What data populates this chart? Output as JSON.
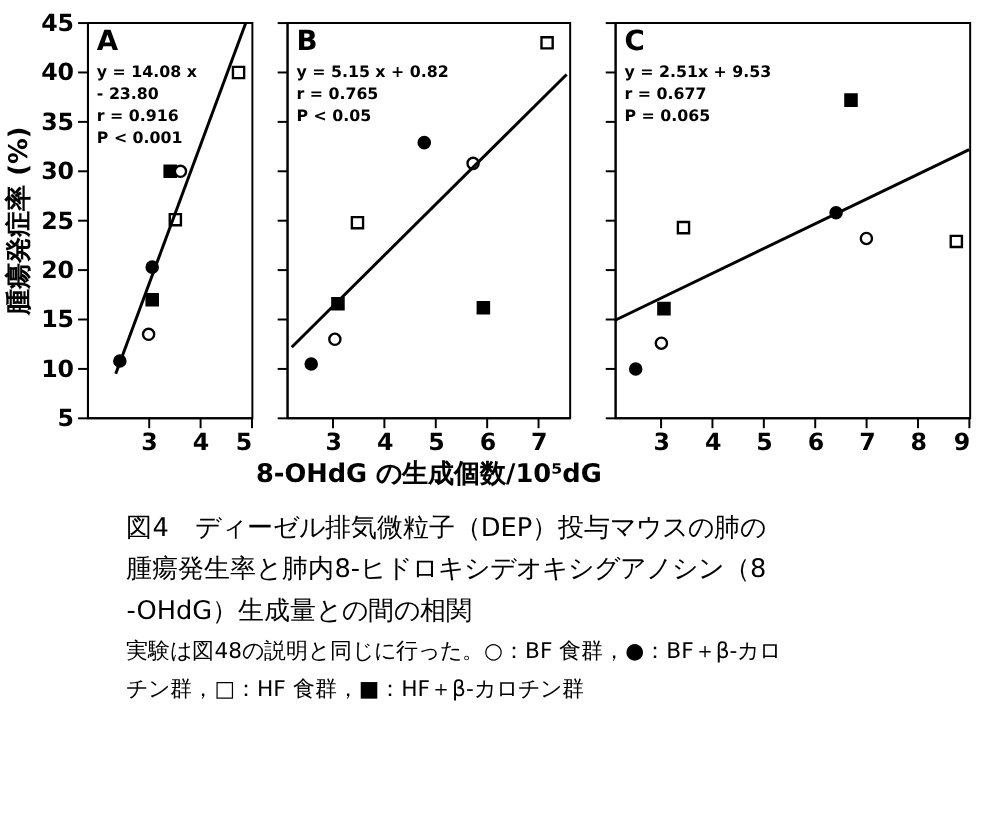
{
  "chart_data": [
    {
      "type": "scatter",
      "title": "A",
      "ylabel": "腫瘍発症率 (%)",
      "annotations": [
        "y = 14.08 x",
        "- 23.80",
        "r = 0.916",
        "P < 0.001"
      ],
      "xlim": [
        1.8,
        5
      ],
      "xticks": [
        3,
        4,
        5
      ],
      "ylim": [
        5,
        45
      ],
      "yticks": [
        5,
        10,
        15,
        20,
        25,
        30,
        35,
        40,
        45
      ],
      "series": [
        {
          "marker": "circle",
          "color": "#000000",
          "x": [
            2.44,
            3.07
          ],
          "values": [
            10.7,
            20.2
          ]
        },
        {
          "marker": "square",
          "color": "#ffffff",
          "x": [
            3.52,
            4.75
          ],
          "values": [
            25.0,
            39.9
          ]
        },
        {
          "marker": "square",
          "color": "#000000",
          "x": [
            3.07,
            3.42
          ],
          "values": [
            16.9,
            29.9
          ]
        },
        {
          "marker": "circle",
          "color": "#ffffff",
          "x": [
            3.0,
            3.62
          ],
          "values": [
            13.4,
            29.9
          ]
        },
        {
          "type": "line",
          "color": "#000000",
          "x": [
            2.36,
            4.89
          ],
          "values": [
            9.4,
            44.9
          ]
        }
      ]
    },
    {
      "type": "scatter",
      "title": "B",
      "xlabel": "8-OHdG の生成個数/10⁵dG",
      "annotations": [
        "y =  5.15 x + 0.82",
        "r = 0.765",
        "P < 0.05"
      ],
      "xlim": [
        2.1,
        7.6
      ],
      "xticks": [
        3,
        4,
        5,
        6,
        7
      ],
      "ylim": [
        5,
        45
      ],
      "yticks": [
        5,
        10,
        15,
        20,
        25,
        30,
        35,
        40,
        45
      ],
      "tick_labels": "x",
      "series": [
        {
          "marker": "circle",
          "color": "#ffffff",
          "x": [
            3.04,
            5.73
          ],
          "values": [
            12.9,
            30.7
          ]
        },
        {
          "marker": "circle",
          "color": "#000000",
          "x": [
            2.58,
            4.78
          ],
          "values": [
            10.4,
            32.8
          ]
        },
        {
          "marker": "square",
          "color": "#ffffff",
          "x": [
            3.48,
            7.17
          ],
          "values": [
            24.7,
            42.9
          ]
        },
        {
          "marker": "square",
          "color": "#000000",
          "x": [
            3.1,
            5.93
          ],
          "values": [
            16.5,
            16.1
          ]
        },
        {
          "type": "line",
          "color": "#000000",
          "x": [
            2.2,
            7.55
          ],
          "values": [
            12.1,
            39.7
          ]
        }
      ]
    },
    {
      "type": "scatter",
      "title": "C",
      "annotations": [
        "y = 2.51x + 9.53",
        "r = 0.677",
        "P = 0.065"
      ],
      "xlim": [
        2.1,
        9
      ],
      "xticks": [
        3,
        4,
        5,
        6,
        7,
        8,
        9
      ],
      "ylim": [
        5,
        45
      ],
      "yticks": [
        5,
        10,
        15,
        20,
        25,
        30,
        35,
        40,
        45
      ],
      "tick_labels": "x",
      "series": [
        {
          "marker": "circle",
          "color": "#ffffff",
          "x": [
            3.01,
            7.0
          ],
          "values": [
            12.5,
            23.1
          ]
        },
        {
          "marker": "circle",
          "color": "#000000",
          "x": [
            2.51,
            6.41
          ],
          "values": [
            9.9,
            25.7
          ]
        },
        {
          "marker": "square",
          "color": "#ffffff",
          "x": [
            3.44,
            8.75
          ],
          "values": [
            24.2,
            22.8
          ]
        },
        {
          "marker": "square",
          "color": "#000000",
          "x": [
            3.06,
            6.7
          ],
          "values": [
            16.0,
            37.1
          ]
        },
        {
          "type": "line",
          "color": "#000000",
          "x": [
            2.1,
            9
          ],
          "values": [
            14.8,
            32.1
          ]
        }
      ]
    },
    {
      "type": "other",
      "title": "図4　ディーゼル排気微粒子（DEP）投与マウスの肺の腫瘍発生率と肺内8-ヒドロキシデオキシグアノシン（8-OHdG）生成量との間の相関",
      "annotations": [
        "実験は図48の説明と同じに行った。○：BF 食群，●：BF＋β-カロチン群，□：HF 食群，■：HF＋β-カロチン群"
      ]
    }
  ]
}
